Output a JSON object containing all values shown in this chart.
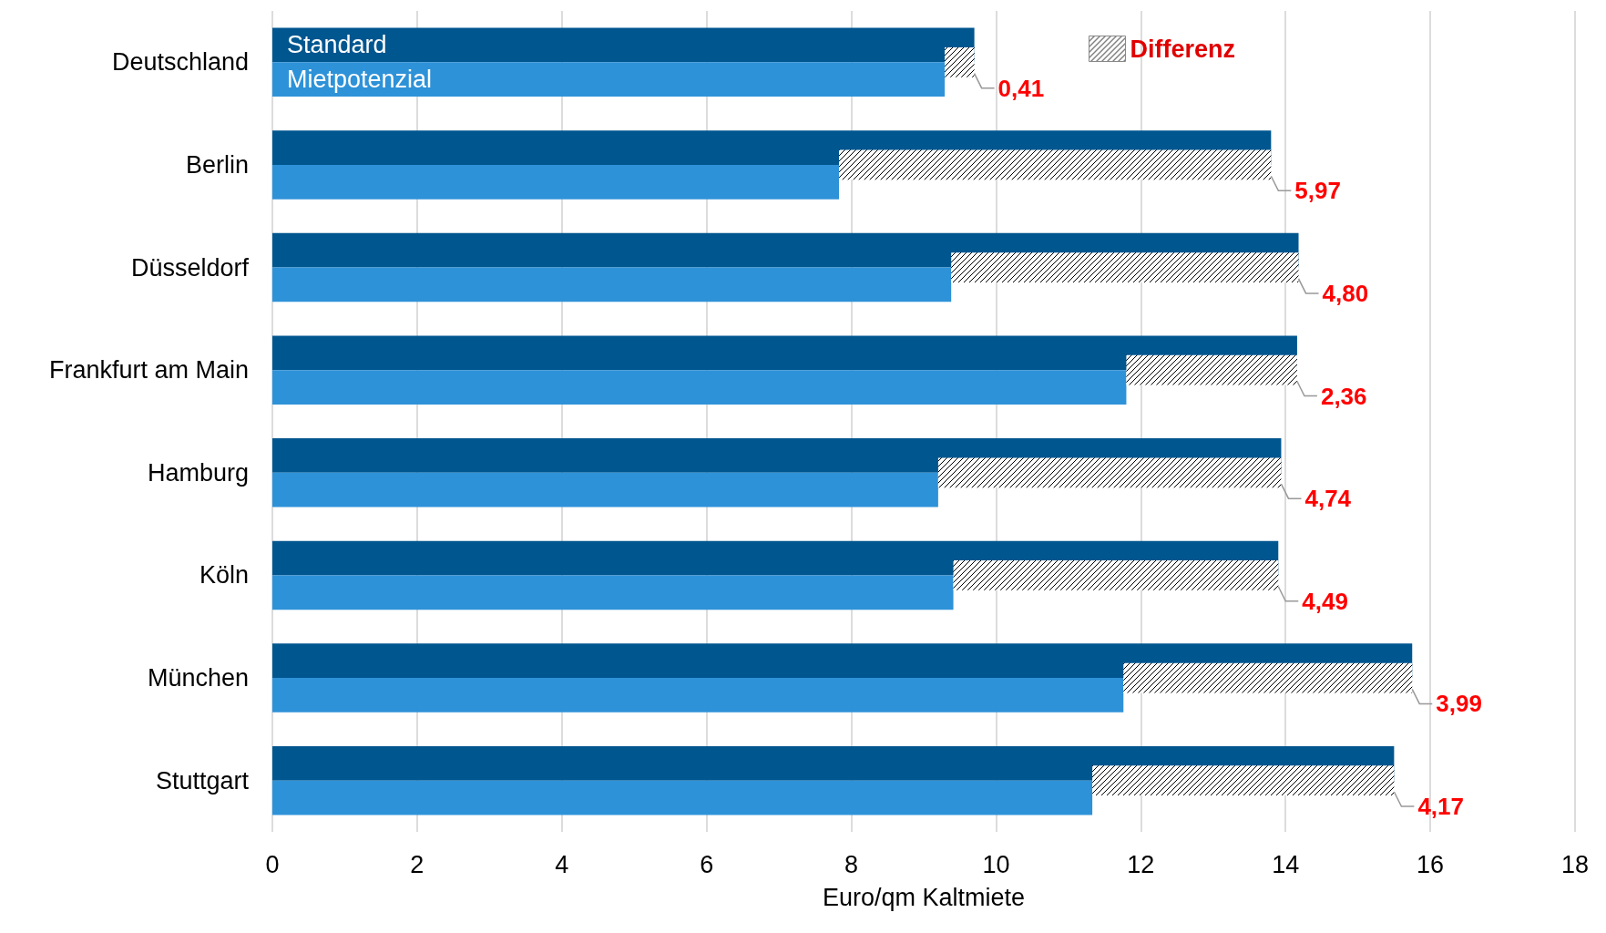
{
  "chart_data": {
    "type": "bar",
    "orientation": "horizontal",
    "xlabel": "Euro/qm Kaltmiete",
    "categories": [
      "Deutschland",
      "Berlin",
      "Düsseldorf",
      "Frankfurt am Main",
      "Hamburg",
      "Köln",
      "München",
      "Stuttgart"
    ],
    "series": [
      {
        "name": "Standard",
        "color": "#00568f",
        "values": [
          9.7,
          13.8,
          14.18,
          14.16,
          13.94,
          13.9,
          15.75,
          15.5
        ]
      },
      {
        "name": "Mietpotenzial",
        "color": "#2e92d8",
        "values": [
          9.29,
          7.83,
          9.38,
          11.8,
          9.2,
          9.41,
          11.76,
          11.33
        ]
      },
      {
        "name": "Differenz",
        "color": "#000000",
        "base": [
          9.29,
          7.83,
          9.38,
          11.8,
          9.2,
          9.41,
          11.76,
          11.33
        ],
        "values": [
          0.41,
          5.97,
          4.8,
          2.36,
          4.74,
          4.49,
          3.99,
          4.17
        ],
        "value_labels": [
          "0,41",
          "5,97",
          "4,80",
          "2,36",
          "4,74",
          "4,49",
          "3,99",
          "4,17"
        ]
      }
    ],
    "xlim": [
      0,
      18
    ],
    "xticks": [
      0,
      2,
      4,
      6,
      8,
      10,
      12,
      14,
      16,
      18
    ],
    "grid": "x",
    "legend": "top right"
  }
}
